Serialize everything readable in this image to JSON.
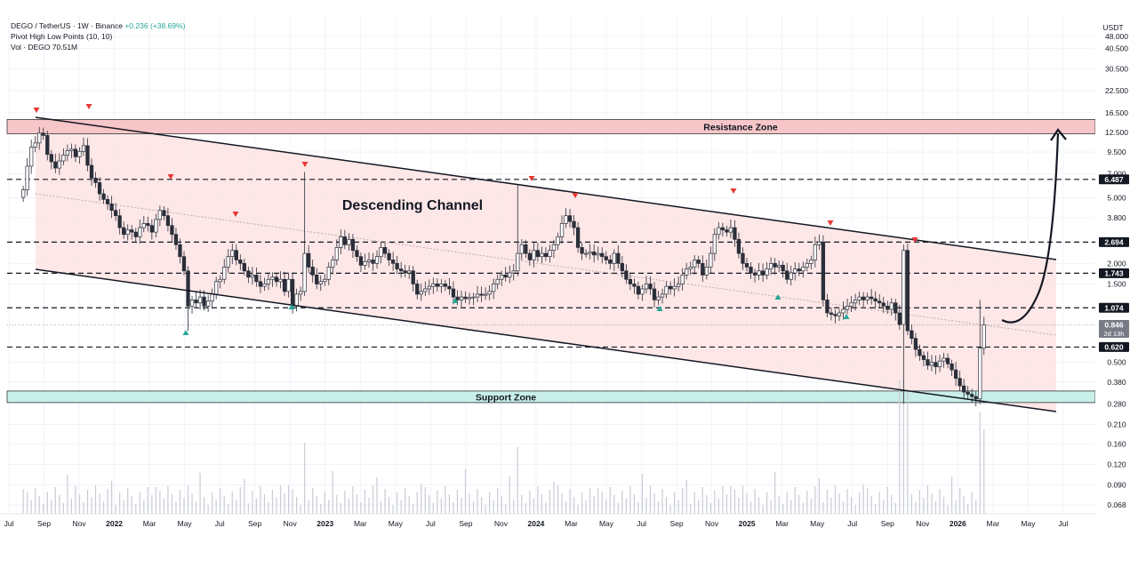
{
  "header": {
    "symbol_line": "DEGO / TetherUS · 1W · Binance",
    "change": "+0.236 (+38.69%)",
    "indicator": "Pivot High Low Points (10, 10)",
    "volume_label": "Vol · DEGO",
    "volume_value": "70.51M"
  },
  "colors": {
    "up_candle": "#ffffff",
    "down_candle": "#2a2e39",
    "resistance_zone": "#f7c6c8",
    "support_zone": "#c8efe8",
    "channel_fill": "#fde3e3",
    "pivot_high": "#e53935",
    "pivot_low": "#26a69a"
  },
  "chart_data": {
    "type": "candlestick",
    "title": "",
    "y_axis_unit": "USDT",
    "y_scale": "log",
    "ylim": [
      0.06,
      48
    ],
    "y_tick_labels": [
      "48.000",
      "40.500",
      "30.500",
      "22.500",
      "16.500",
      "12.500",
      "9.500",
      "7.000",
      "5.000",
      "3.800",
      "2.000",
      "1.500",
      "0.500",
      "0.380",
      "0.280",
      "0.210",
      "0.160",
      "0.120",
      "0.090",
      "0.068"
    ],
    "x_tick_labels": [
      "Jul",
      "Sep",
      "Nov",
      "2022",
      "Mar",
      "May",
      "Jul",
      "Sep",
      "Nov",
      "2023",
      "Mar",
      "May",
      "Jul",
      "Sep",
      "Nov",
      "2024",
      "Mar",
      "May",
      "Jul",
      "Sep",
      "Nov",
      "2025",
      "Mar",
      "May",
      "Jul",
      "Sep",
      "Nov",
      "2026",
      "Mar",
      "May",
      "Jul"
    ],
    "price_labels": [
      {
        "value": 6.487,
        "text": "6.487"
      },
      {
        "value": 2.694,
        "text": "2.694"
      },
      {
        "value": 1.743,
        "text": "1.743"
      },
      {
        "value": 1.074,
        "text": "1.074"
      },
      {
        "value": 0.846,
        "text": "0.846",
        "sub": "2d 13h"
      },
      {
        "value": 0.62,
        "text": "0.620"
      }
    ],
    "zones": [
      {
        "name": "Resistance Zone",
        "low": 12.3,
        "high": 15.0
      },
      {
        "name": "Support Zone",
        "low": 0.285,
        "high": 0.335
      }
    ],
    "annotations": [
      "Descending Channel"
    ],
    "close_series": [
      [
        "2021-07-26",
        5.6
      ],
      [
        "2021-08-02",
        7.8
      ],
      [
        "2021-08-09",
        10.2
      ],
      [
        "2021-08-16",
        10.8
      ],
      [
        "2021-08-23",
        12.4
      ],
      [
        "2021-08-30",
        12.0
      ],
      [
        "2021-09-06",
        9.2
      ],
      [
        "2021-09-13",
        8.3
      ],
      [
        "2021-09-20",
        7.6
      ],
      [
        "2021-09-27",
        8.4
      ],
      [
        "2021-10-04",
        9.1
      ],
      [
        "2021-10-11",
        9.7
      ],
      [
        "2021-10-18",
        9.9
      ],
      [
        "2021-10-25",
        8.9
      ],
      [
        "2021-11-01",
        9.6
      ],
      [
        "2021-11-08",
        10.4
      ],
      [
        "2021-11-15",
        7.9
      ],
      [
        "2021-11-22",
        6.6
      ],
      [
        "2021-11-29",
        6.2
      ],
      [
        "2021-12-06",
        5.3
      ],
      [
        "2021-12-13",
        4.9
      ],
      [
        "2021-12-20",
        4.6
      ],
      [
        "2021-12-27",
        4.2
      ],
      [
        "2022-01-03",
        3.9
      ],
      [
        "2022-01-10",
        3.3
      ],
      [
        "2022-01-17",
        3.0
      ],
      [
        "2022-01-24",
        3.2
      ],
      [
        "2022-01-31",
        3.1
      ],
      [
        "2022-02-07",
        2.9
      ],
      [
        "2022-02-14",
        3.3
      ],
      [
        "2022-02-21",
        3.5
      ],
      [
        "2022-02-28",
        3.4
      ],
      [
        "2022-03-07",
        3.1
      ],
      [
        "2022-03-14",
        3.7
      ],
      [
        "2022-03-21",
        4.2
      ],
      [
        "2022-03-28",
        3.9
      ],
      [
        "2022-04-04",
        3.4
      ],
      [
        "2022-04-11",
        3.0
      ],
      [
        "2022-04-18",
        2.6
      ],
      [
        "2022-04-25",
        2.2
      ],
      [
        "2022-05-02",
        1.8
      ],
      [
        "2022-05-09",
        1.1
      ],
      [
        "2022-05-16",
        1.2
      ],
      [
        "2022-05-23",
        1.15
      ],
      [
        "2022-05-30",
        1.25
      ],
      [
        "2022-06-06",
        1.1
      ],
      [
        "2022-06-13",
        1.18
      ],
      [
        "2022-06-20",
        1.3
      ],
      [
        "2022-06-27",
        1.55
      ],
      [
        "2022-07-04",
        1.6
      ],
      [
        "2022-07-11",
        1.9
      ],
      [
        "2022-07-18",
        2.2
      ],
      [
        "2022-07-25",
        2.4
      ],
      [
        "2022-08-01",
        2.1
      ],
      [
        "2022-08-08",
        2.0
      ],
      [
        "2022-08-15",
        1.8
      ],
      [
        "2022-08-22",
        1.65
      ],
      [
        "2022-08-29",
        1.7
      ],
      [
        "2022-09-05",
        1.55
      ],
      [
        "2022-09-12",
        1.45
      ],
      [
        "2022-09-19",
        1.5
      ],
      [
        "2022-09-26",
        1.6
      ],
      [
        "2022-10-03",
        1.65
      ],
      [
        "2022-10-10",
        1.55
      ],
      [
        "2022-10-17",
        1.6
      ],
      [
        "2022-10-24",
        1.35
      ],
      [
        "2022-10-31",
        1.6
      ],
      [
        "2022-11-07",
        1.1
      ],
      [
        "2022-11-14",
        1.3
      ],
      [
        "2022-11-21",
        1.35
      ],
      [
        "2022-11-28",
        2.3
      ],
      [
        "2022-12-05",
        1.9
      ],
      [
        "2022-12-12",
        1.7
      ],
      [
        "2022-12-19",
        1.5
      ],
      [
        "2022-12-26",
        1.55
      ],
      [
        "2023-01-02",
        1.6
      ],
      [
        "2023-01-09",
        1.9
      ],
      [
        "2023-01-16",
        2.1
      ],
      [
        "2023-01-23",
        2.5
      ],
      [
        "2023-01-30",
        2.9
      ],
      [
        "2023-02-06",
        2.6
      ],
      [
        "2023-02-13",
        2.8
      ],
      [
        "2023-02-20",
        2.4
      ],
      [
        "2023-02-27",
        2.2
      ],
      [
        "2023-03-06",
        1.95
      ],
      [
        "2023-03-13",
        2.05
      ],
      [
        "2023-03-20",
        2.1
      ],
      [
        "2023-03-27",
        2.0
      ],
      [
        "2023-04-03",
        2.2
      ],
      [
        "2023-04-10",
        2.5
      ],
      [
        "2023-04-17",
        2.3
      ],
      [
        "2023-04-24",
        2.1
      ],
      [
        "2023-05-01",
        2.0
      ],
      [
        "2023-05-08",
        1.85
      ],
      [
        "2023-05-15",
        1.8
      ],
      [
        "2023-05-22",
        1.75
      ],
      [
        "2023-05-29",
        1.8
      ],
      [
        "2023-06-05",
        1.5
      ],
      [
        "2023-06-12",
        1.3
      ],
      [
        "2023-06-19",
        1.35
      ],
      [
        "2023-06-26",
        1.4
      ],
      [
        "2023-07-03",
        1.45
      ],
      [
        "2023-07-10",
        1.5
      ],
      [
        "2023-07-17",
        1.45
      ],
      [
        "2023-07-24",
        1.5
      ],
      [
        "2023-07-31",
        1.45
      ],
      [
        "2023-08-07",
        1.4
      ],
      [
        "2023-08-14",
        1.25
      ],
      [
        "2023-08-21",
        1.2
      ],
      [
        "2023-08-28",
        1.25
      ],
      [
        "2023-09-04",
        1.22
      ],
      [
        "2023-09-11",
        1.24
      ],
      [
        "2023-09-18",
        1.25
      ],
      [
        "2023-09-25",
        1.3
      ],
      [
        "2023-10-02",
        1.28
      ],
      [
        "2023-10-09",
        1.3
      ],
      [
        "2023-10-16",
        1.35
      ],
      [
        "2023-10-23",
        1.5
      ],
      [
        "2023-10-30",
        1.6
      ],
      [
        "2023-11-06",
        1.7
      ],
      [
        "2023-11-13",
        1.65
      ],
      [
        "2023-11-20",
        1.75
      ],
      [
        "2023-11-27",
        1.8
      ],
      [
        "2023-12-04",
        2.3
      ],
      [
        "2023-12-11",
        2.6
      ],
      [
        "2023-12-18",
        2.3
      ],
      [
        "2023-12-25",
        2.1
      ],
      [
        "2024-01-01",
        2.4
      ],
      [
        "2024-01-08",
        2.2
      ],
      [
        "2024-01-15",
        2.3
      ],
      [
        "2024-01-22",
        2.2
      ],
      [
        "2024-01-29",
        2.4
      ],
      [
        "2024-02-05",
        2.6
      ],
      [
        "2024-02-12",
        2.9
      ],
      [
        "2024-02-19",
        3.5
      ],
      [
        "2024-02-26",
        3.9
      ],
      [
        "2024-03-04",
        3.6
      ],
      [
        "2024-03-11",
        3.3
      ],
      [
        "2024-03-18",
        2.5
      ],
      [
        "2024-03-25",
        2.3
      ],
      [
        "2024-04-01",
        2.3
      ],
      [
        "2024-04-08",
        2.35
      ],
      [
        "2024-04-15",
        2.25
      ],
      [
        "2024-04-22",
        2.3
      ],
      [
        "2024-04-29",
        2.2
      ],
      [
        "2024-05-06",
        2.1
      ],
      [
        "2024-05-13",
        2.0
      ],
      [
        "2024-05-20",
        2.3
      ],
      [
        "2024-05-27",
        2.0
      ],
      [
        "2024-06-03",
        1.8
      ],
      [
        "2024-06-10",
        1.6
      ],
      [
        "2024-06-17",
        1.5
      ],
      [
        "2024-06-24",
        1.45
      ],
      [
        "2024-07-01",
        1.3
      ],
      [
        "2024-07-08",
        1.4
      ],
      [
        "2024-07-15",
        1.5
      ],
      [
        "2024-07-22",
        1.4
      ],
      [
        "2024-07-29",
        1.2
      ],
      [
        "2024-08-05",
        1.25
      ],
      [
        "2024-08-12",
        1.3
      ],
      [
        "2024-08-19",
        1.45
      ],
      [
        "2024-08-26",
        1.4
      ],
      [
        "2024-09-02",
        1.45
      ],
      [
        "2024-09-09",
        1.5
      ],
      [
        "2024-09-16",
        1.7
      ],
      [
        "2024-09-23",
        1.85
      ],
      [
        "2024-09-30",
        1.9
      ],
      [
        "2024-10-07",
        2.1
      ],
      [
        "2024-10-14",
        2.0
      ],
      [
        "2024-10-21",
        1.7
      ],
      [
        "2024-10-28",
        1.9
      ],
      [
        "2024-11-04",
        2.3
      ],
      [
        "2024-11-11",
        3.0
      ],
      [
        "2024-11-18",
        3.3
      ],
      [
        "2024-11-25",
        3.2
      ],
      [
        "2024-12-02",
        3.1
      ],
      [
        "2024-12-09",
        3.3
      ],
      [
        "2024-12-16",
        2.8
      ],
      [
        "2024-12-23",
        2.3
      ],
      [
        "2024-12-30",
        2.0
      ],
      [
        "2025-01-06",
        1.9
      ],
      [
        "2025-01-13",
        1.75
      ],
      [
        "2025-01-20",
        1.7
      ],
      [
        "2025-01-27",
        1.8
      ],
      [
        "2025-02-03",
        1.7
      ],
      [
        "2025-02-10",
        1.85
      ],
      [
        "2025-02-17",
        2.0
      ],
      [
        "2025-02-24",
        1.9
      ],
      [
        "2025-03-03",
        1.95
      ],
      [
        "2025-03-10",
        1.8
      ],
      [
        "2025-03-17",
        1.6
      ],
      [
        "2025-03-24",
        1.75
      ],
      [
        "2025-03-31",
        1.85
      ],
      [
        "2025-04-07",
        1.8
      ],
      [
        "2025-04-14",
        1.9
      ],
      [
        "2025-04-21",
        2.0
      ],
      [
        "2025-04-28",
        2.1
      ],
      [
        "2025-05-05",
        2.6
      ],
      [
        "2025-05-12",
        2.7
      ],
      [
        "2025-05-19",
        1.2
      ],
      [
        "2025-05-26",
        1.0
      ],
      [
        "2025-06-02",
        0.98
      ],
      [
        "2025-06-09",
        0.96
      ],
      [
        "2025-06-16",
        1.0
      ],
      [
        "2025-06-23",
        1.05
      ],
      [
        "2025-06-30",
        1.1
      ],
      [
        "2025-07-07",
        1.15
      ],
      [
        "2025-07-14",
        1.2
      ],
      [
        "2025-07-21",
        1.25
      ],
      [
        "2025-07-28",
        1.2
      ],
      [
        "2025-08-04",
        1.25
      ],
      [
        "2025-08-11",
        1.22
      ],
      [
        "2025-08-18",
        1.18
      ],
      [
        "2025-08-25",
        1.15
      ],
      [
        "2025-09-01",
        1.1
      ],
      [
        "2025-09-08",
        1.05
      ],
      [
        "2025-09-15",
        1.15
      ],
      [
        "2025-09-22",
        1.0
      ],
      [
        "2025-09-29",
        0.85
      ],
      [
        "2025-10-06",
        2.4
      ],
      [
        "2025-10-13",
        0.78
      ],
      [
        "2025-10-20",
        0.7
      ],
      [
        "2025-10-27",
        0.6
      ],
      [
        "2025-11-03",
        0.55
      ],
      [
        "2025-11-10",
        0.52
      ],
      [
        "2025-11-17",
        0.48
      ],
      [
        "2025-11-24",
        0.5
      ],
      [
        "2025-12-01",
        0.47
      ],
      [
        "2025-12-08",
        0.51
      ],
      [
        "2025-12-15",
        0.53
      ],
      [
        "2025-12-22",
        0.49
      ],
      [
        "2025-12-29",
        0.45
      ],
      [
        "2026-01-05",
        0.4
      ],
      [
        "2026-01-12",
        0.36
      ],
      [
        "2026-01-19",
        0.33
      ],
      [
        "2026-01-26",
        0.32
      ],
      [
        "2026-02-02",
        0.31
      ],
      [
        "2026-02-09",
        0.3
      ],
      [
        "2026-02-16",
        0.61
      ],
      [
        "2026-02-23",
        0.846
      ]
    ]
  }
}
